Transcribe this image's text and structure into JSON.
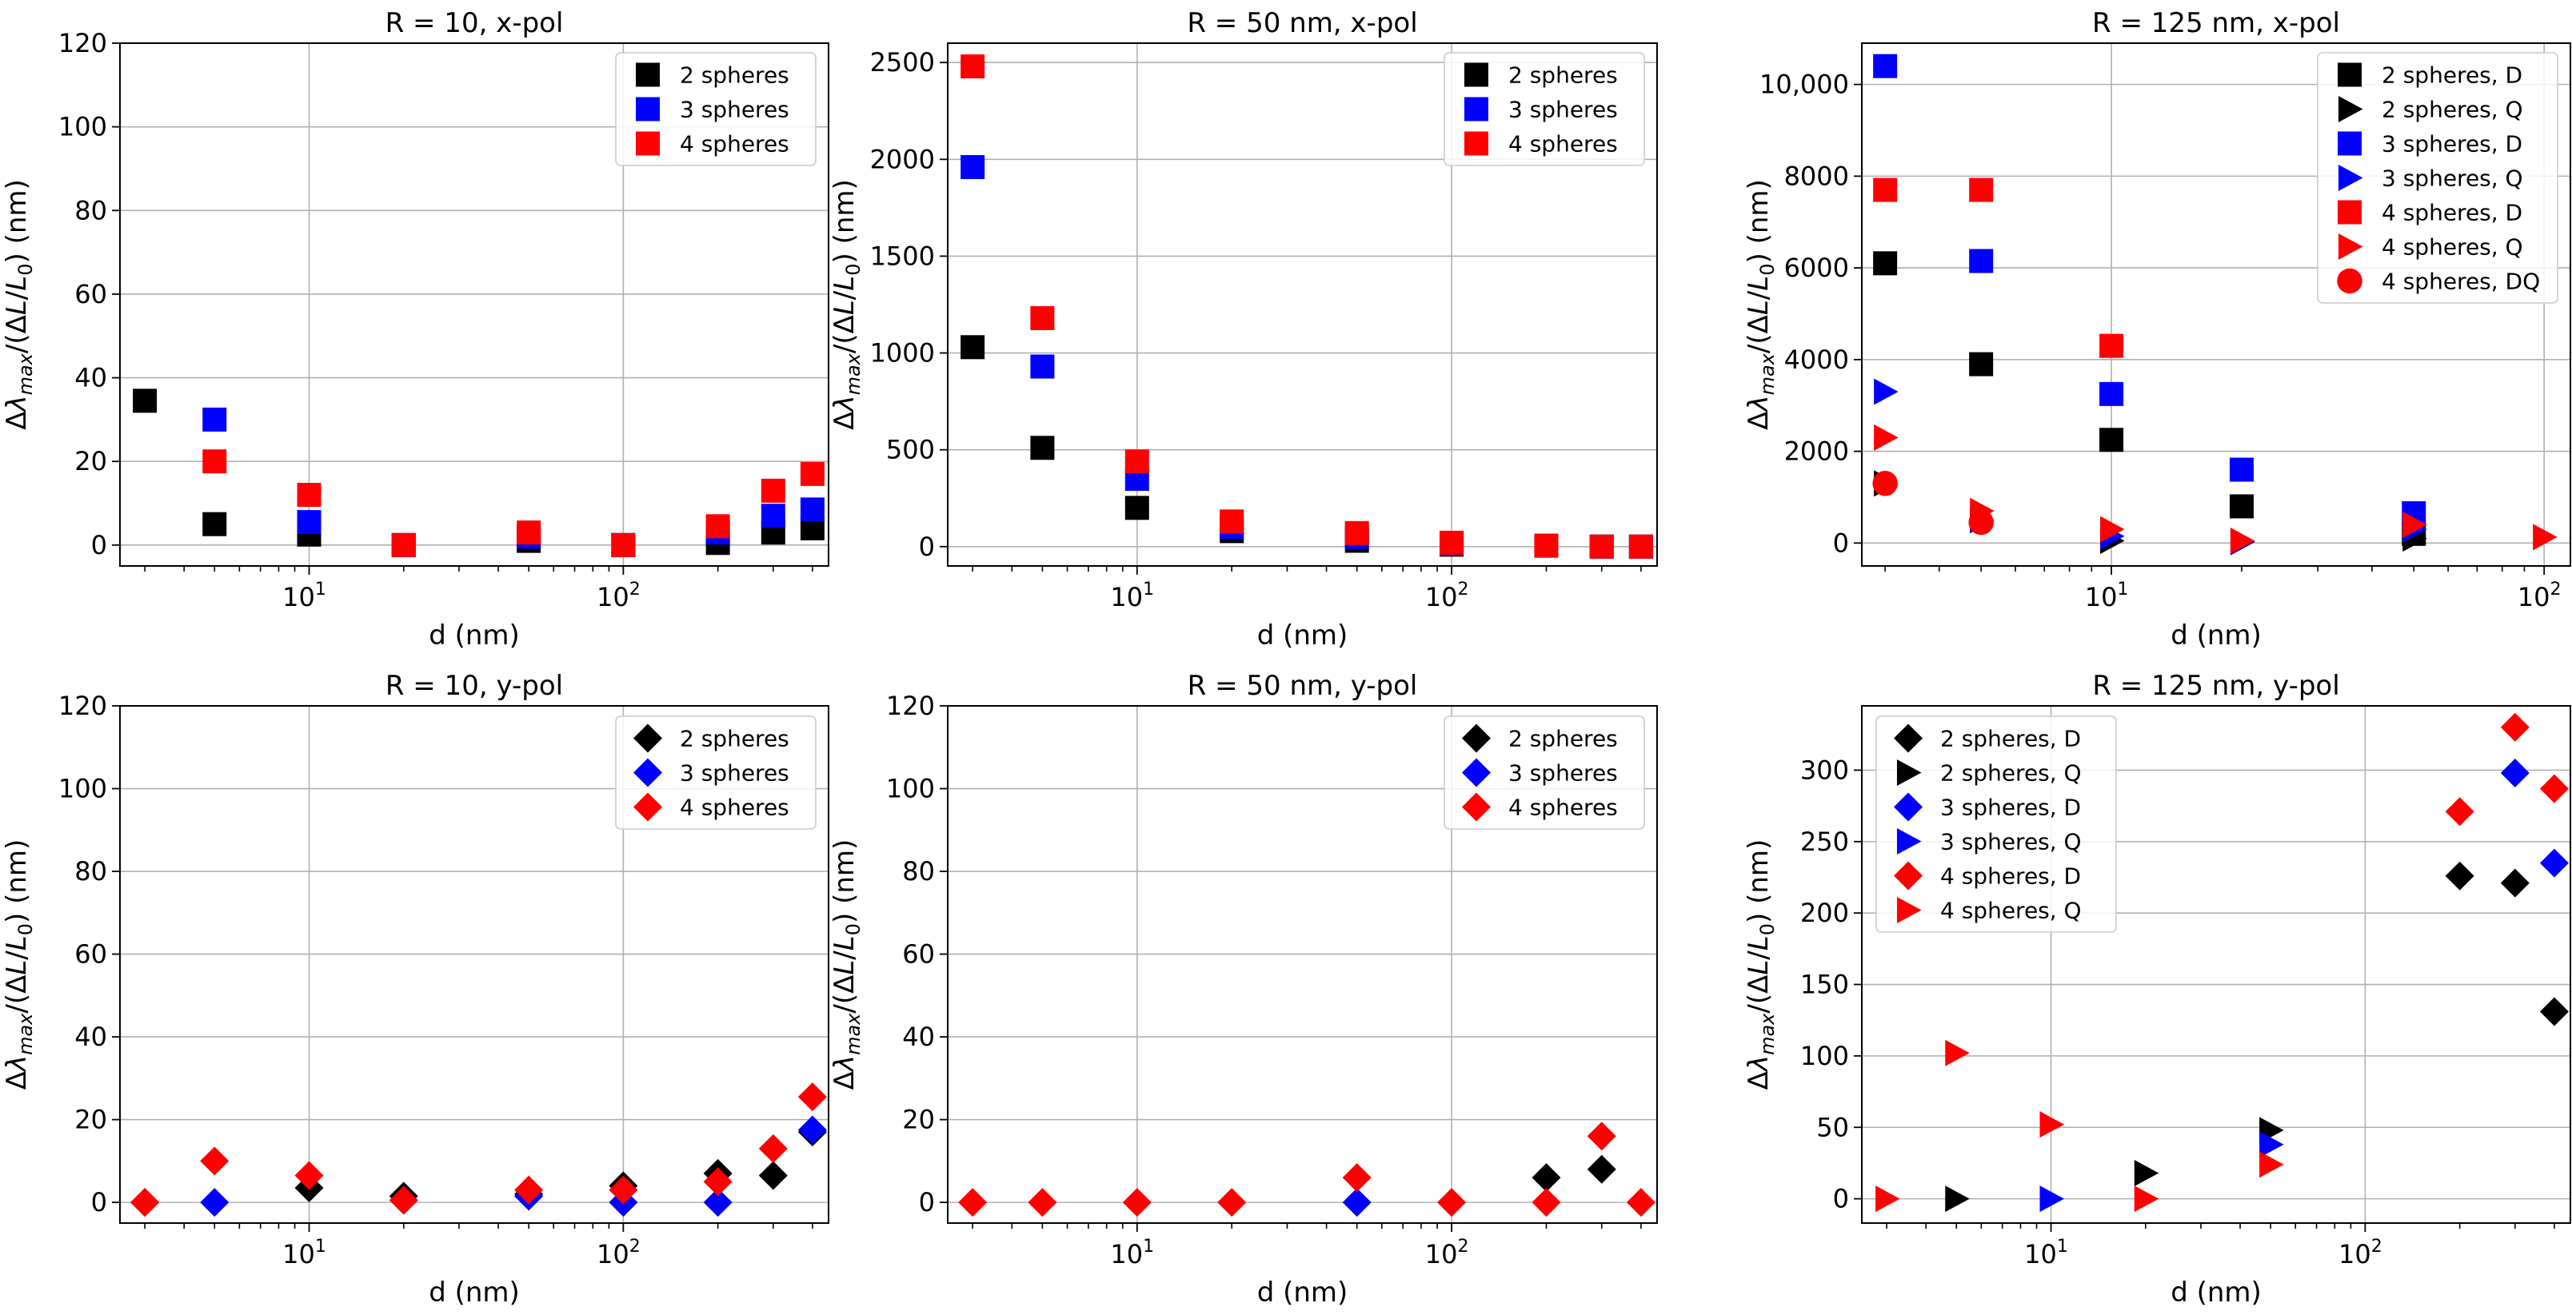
{
  "chart_data": [
    {
      "type": "scatter",
      "title": "R = 10, x-pol",
      "xlabel": "d (nm)",
      "ylabel": "Δλ_max/(ΔL/L_0) (nm)",
      "xscale": "log",
      "xlim": [
        2.5,
        450
      ],
      "ylim": [
        -5,
        120
      ],
      "yticks": [
        0,
        20,
        40,
        60,
        80,
        100,
        120
      ],
      "ytick_labels": [
        "0",
        "20",
        "40",
        "60",
        "80",
        "100",
        "120"
      ],
      "xticks": [
        10,
        100
      ],
      "xtick_labels": [
        {
          "base": "10",
          "exp": "1"
        },
        {
          "base": "10",
          "exp": "2"
        }
      ],
      "legend_position": "top-right",
      "series": [
        {
          "name": "2 spheres",
          "marker": "square",
          "color": "#000000",
          "x": [
            3,
            5,
            10,
            20,
            50,
            100,
            200,
            300,
            400
          ],
          "y": [
            34.5,
            5,
            2.5,
            0,
            1,
            0,
            0.5,
            3,
            4
          ]
        },
        {
          "name": "3 spheres",
          "marker": "square",
          "color": "#0000ff",
          "x": [
            5,
            10,
            20,
            50,
            100,
            200,
            300,
            400
          ],
          "y": [
            30,
            5.5,
            0,
            2,
            0,
            3,
            7,
            8.5
          ]
        },
        {
          "name": "4 spheres",
          "marker": "square",
          "color": "#ff0000",
          "x": [
            5,
            10,
            20,
            50,
            100,
            200,
            300,
            400
          ],
          "y": [
            20,
            12,
            0,
            3,
            0,
            4.5,
            13,
            17
          ]
        }
      ]
    },
    {
      "type": "scatter",
      "title": "R = 50 nm, x-pol",
      "xlabel": "d (nm)",
      "ylabel": "Δλ_max/(ΔL/L_0) (nm)",
      "xscale": "log",
      "xlim": [
        2.5,
        450
      ],
      "ylim": [
        -100,
        2600
      ],
      "yticks": [
        0,
        500,
        1000,
        1500,
        2000,
        2500
      ],
      "ytick_labels": [
        "0",
        "500",
        "1000",
        "1500",
        "2000",
        "2500"
      ],
      "xticks": [
        10,
        100
      ],
      "xtick_labels": [
        {
          "base": "10",
          "exp": "1"
        },
        {
          "base": "10",
          "exp": "2"
        }
      ],
      "legend_position": "top-right",
      "series": [
        {
          "name": "2 spheres",
          "marker": "square",
          "color": "#000000",
          "x": [
            3,
            5,
            10,
            20,
            50,
            100,
            200,
            300,
            400
          ],
          "y": [
            1030,
            510,
            200,
            80,
            30,
            10,
            5,
            0,
            0
          ]
        },
        {
          "name": "3 spheres",
          "marker": "square",
          "color": "#0000ff",
          "x": [
            3,
            5,
            10,
            20,
            50,
            100,
            200,
            300,
            400
          ],
          "y": [
            1960,
            930,
            350,
            100,
            50,
            15,
            5,
            0,
            0
          ]
        },
        {
          "name": "4 spheres",
          "marker": "square",
          "color": "#ff0000",
          "x": [
            3,
            5,
            10,
            20,
            50,
            100,
            200,
            300,
            400
          ],
          "y": [
            2480,
            1180,
            440,
            130,
            70,
            20,
            5,
            0,
            0
          ]
        }
      ]
    },
    {
      "type": "scatter",
      "title": "R = 125 nm, x-pol",
      "xlabel": "d (nm)",
      "ylabel": "Δλ_max/(ΔL/L_0) (nm)",
      "xscale": "log",
      "xlim": [
        2.65,
        115
      ],
      "ylim": [
        -500,
        10900
      ],
      "yticks": [
        0,
        2000,
        4000,
        6000,
        8000,
        10000
      ],
      "ytick_labels": [
        "0",
        "2000",
        "4000",
        "6000",
        "8000",
        "10,000"
      ],
      "xticks": [
        10,
        100
      ],
      "xtick_labels": [
        {
          "base": "10",
          "exp": "1"
        },
        {
          "base": "10",
          "exp": "2"
        }
      ],
      "legend_position": "top-right",
      "series": [
        {
          "name": "2 spheres, D",
          "marker": "square",
          "color": "#000000",
          "x": [
            3,
            5,
            10,
            20,
            50
          ],
          "y": [
            6100,
            3900,
            2250,
            800,
            200
          ]
        },
        {
          "name": "2 spheres, Q",
          "marker": "triangle-right",
          "color": "#000000",
          "x": [
            3,
            5,
            10,
            20,
            50
          ],
          "y": [
            1300,
            500,
            50,
            20,
            100
          ]
        },
        {
          "name": "3 spheres, D",
          "marker": "square",
          "color": "#0000ff",
          "x": [
            3,
            5,
            10,
            20,
            50
          ],
          "y": [
            10400,
            6150,
            3250,
            1600,
            650
          ]
        },
        {
          "name": "3 spheres, Q",
          "marker": "triangle-right",
          "color": "#0000ff",
          "x": [
            3,
            5,
            10,
            20,
            50
          ],
          "y": [
            3300,
            500,
            150,
            30,
            300
          ]
        },
        {
          "name": "4 spheres, D",
          "marker": "square",
          "color": "#ff0000",
          "x": [
            3,
            5,
            10
          ],
          "y": [
            7700,
            7700,
            4300
          ]
        },
        {
          "name": "4 spheres, Q",
          "marker": "triangle-right",
          "color": "#ff0000",
          "x": [
            3,
            5,
            10,
            20,
            50,
            100
          ],
          "y": [
            2300,
            700,
            300,
            50,
            400,
            130
          ]
        },
        {
          "name": "4 spheres, DQ",
          "marker": "circle",
          "color": "#ff0000",
          "x": [
            3,
            5
          ],
          "y": [
            1300,
            450
          ]
        }
      ]
    },
    {
      "type": "scatter",
      "title": "R = 10, y-pol",
      "xlabel": "d (nm)",
      "ylabel": "Δλ_max/(ΔL/L_0) (nm)",
      "xscale": "log",
      "xlim": [
        2.5,
        450
      ],
      "ylim": [
        -5,
        120
      ],
      "yticks": [
        0,
        20,
        40,
        60,
        80,
        100,
        120
      ],
      "ytick_labels": [
        "0",
        "20",
        "40",
        "60",
        "80",
        "100",
        "120"
      ],
      "xticks": [
        10,
        100
      ],
      "xtick_labels": [
        {
          "base": "10",
          "exp": "1"
        },
        {
          "base": "10",
          "exp": "2"
        }
      ],
      "legend_position": "top-right",
      "series": [
        {
          "name": "2 spheres",
          "marker": "diamond",
          "color": "#000000",
          "x": [
            3,
            10,
            20,
            50,
            100,
            200,
            300,
            400
          ],
          "y": [
            0,
            3.5,
            1.5,
            2,
            4,
            7,
            6.5,
            17
          ]
        },
        {
          "name": "3 spheres",
          "marker": "diamond",
          "color": "#0000ff",
          "x": [
            5,
            20,
            50,
            100,
            200,
            400
          ],
          "y": [
            0,
            0.5,
            1.5,
            0,
            0,
            17.5
          ]
        },
        {
          "name": "4 spheres",
          "marker": "diamond",
          "color": "#ff0000",
          "x": [
            3,
            5,
            10,
            20,
            50,
            100,
            200,
            300,
            400
          ],
          "y": [
            0,
            10,
            6.5,
            0.5,
            3,
            3,
            5,
            13,
            25.5
          ]
        }
      ]
    },
    {
      "type": "scatter",
      "title": "R = 50 nm, y-pol",
      "xlabel": "d (nm)",
      "ylabel": "Δλ_max/(ΔL/L_0) (nm)",
      "xscale": "log",
      "xlim": [
        2.5,
        450
      ],
      "ylim": [
        -5,
        120
      ],
      "yticks": [
        0,
        20,
        40,
        60,
        80,
        100,
        120
      ],
      "ytick_labels": [
        "0",
        "20",
        "40",
        "60",
        "80",
        "100",
        "120"
      ],
      "xticks": [
        10,
        100
      ],
      "xtick_labels": [
        {
          "base": "10",
          "exp": "1"
        },
        {
          "base": "10",
          "exp": "2"
        }
      ],
      "legend_position": "top-right",
      "series": [
        {
          "name": "2 spheres",
          "marker": "diamond",
          "color": "#000000",
          "x": [
            200,
            300
          ],
          "y": [
            6,
            8
          ]
        },
        {
          "name": "3 spheres",
          "marker": "diamond",
          "color": "#0000ff",
          "x": [
            50
          ],
          "y": [
            0
          ]
        },
        {
          "name": "4 spheres",
          "marker": "diamond",
          "color": "#ff0000",
          "x": [
            3,
            5,
            10,
            20,
            50,
            100,
            200,
            300,
            400
          ],
          "y": [
            0,
            0,
            0,
            0,
            6,
            0,
            0,
            16,
            0
          ]
        }
      ]
    },
    {
      "type": "scatter",
      "title": "R = 125 nm, y-pol",
      "xlabel": "d (nm)",
      "ylabel": "Δλ_max/(ΔL/L_0) (nm)",
      "xscale": "log",
      "xlim": [
        2.5,
        450
      ],
      "ylim": [
        -17,
        345
      ],
      "yticks": [
        0,
        50,
        100,
        150,
        200,
        250,
        300
      ],
      "ytick_labels": [
        "0",
        "50",
        "100",
        "150",
        "200",
        "250",
        "300"
      ],
      "xticks": [
        10,
        100
      ],
      "xtick_labels": [
        {
          "base": "10",
          "exp": "1"
        },
        {
          "base": "10",
          "exp": "2"
        }
      ],
      "legend_position": "top-left",
      "series": [
        {
          "name": "2 spheres, D",
          "marker": "diamond",
          "color": "#000000",
          "x": [
            200,
            300,
            400
          ],
          "y": [
            226,
            221,
            131
          ]
        },
        {
          "name": "2 spheres, Q",
          "marker": "triangle-right",
          "color": "#000000",
          "x": [
            5,
            20,
            50
          ],
          "y": [
            0,
            18,
            48
          ]
        },
        {
          "name": "3 spheres, D",
          "marker": "diamond",
          "color": "#0000ff",
          "x": [
            300,
            400
          ],
          "y": [
            298,
            235
          ]
        },
        {
          "name": "3 spheres, Q",
          "marker": "triangle-right",
          "color": "#0000ff",
          "x": [
            10,
            50
          ],
          "y": [
            0,
            38
          ]
        },
        {
          "name": "4 spheres, D",
          "marker": "diamond",
          "color": "#ff0000",
          "x": [
            200,
            300,
            400
          ],
          "y": [
            271,
            330,
            287
          ]
        },
        {
          "name": "4 spheres, Q",
          "marker": "triangle-right",
          "color": "#ff0000",
          "x": [
            3,
            5,
            10,
            20,
            50
          ],
          "y": [
            0,
            102,
            52,
            0,
            24
          ]
        }
      ]
    }
  ]
}
